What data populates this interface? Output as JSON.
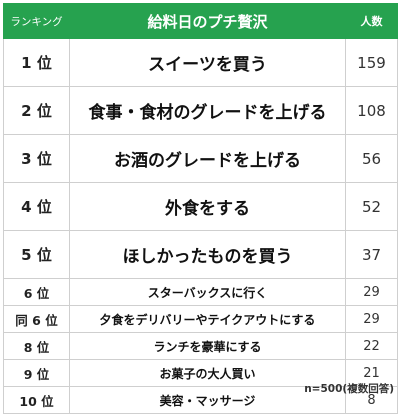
{
  "header": {
    "rank_label": "ランキング",
    "title": "給料日のプチ贅沢",
    "count_label": "人数"
  },
  "rows": [
    {
      "rank": "1 位",
      "item": "スイーツを買う",
      "count": "159"
    },
    {
      "rank": "2 位",
      "item": "食事・食材のグレードを上げる",
      "count": "108"
    },
    {
      "rank": "3 位",
      "item": "お酒のグレードを上げる",
      "count": "56"
    },
    {
      "rank": "4 位",
      "item": "外食をする",
      "count": "52"
    },
    {
      "rank": "5 位",
      "item": "ほしかったものを買う",
      "count": "37"
    },
    {
      "rank": "6 位",
      "item": "スターバックスに行く",
      "count": "29"
    },
    {
      "rank": "同 6 位",
      "item": "夕食をデリバリーやテイクアウトにする",
      "count": "29"
    },
    {
      "rank": "8 位",
      "item": "ランチを豪華にする",
      "count": "22"
    },
    {
      "rank": "9 位",
      "item": "お菓子の大人買い",
      "count": "21"
    },
    {
      "rank": "10 位",
      "item": "美容・マッサージ",
      "count": "8"
    }
  ],
  "footnote": "n=500(複数回答)",
  "colors": {
    "header_bg": "#26a24f",
    "header_text": "#ffffff",
    "border": "#cfcfcf"
  }
}
